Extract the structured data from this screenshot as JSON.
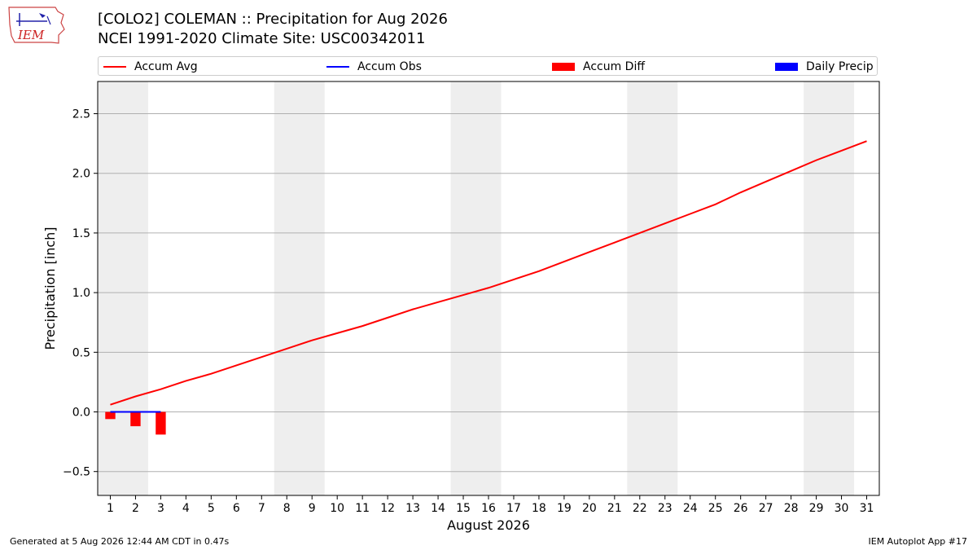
{
  "title": "[COLO2] COLEMAN :: Precipitation for Aug 2026",
  "subtitle": "NCEI 1991-2020 Climate Site: USC00342011",
  "logo_text": "IEM",
  "legend": [
    {
      "label": "Accum Avg",
      "color": "#ff0000",
      "kind": "line"
    },
    {
      "label": "Accum Obs",
      "color": "#0000ff",
      "kind": "line"
    },
    {
      "label": "Accum Diff",
      "color": "#ff0000",
      "kind": "box"
    },
    {
      "label": "Daily Precip",
      "color": "#0000ff",
      "kind": "box"
    }
  ],
  "footer": {
    "left": "Generated at 5 Aug 2026 12:44 AM CDT in 0.47s",
    "right": "IEM Autoplot App #17"
  },
  "chart_data": {
    "type": "line",
    "xlabel": "August 2026",
    "ylabel": "Precipitation [inch]",
    "xlim": [
      0.5,
      31.5
    ],
    "ylim": [
      -0.7,
      2.77
    ],
    "x": [
      1,
      2,
      3,
      4,
      5,
      6,
      7,
      8,
      9,
      10,
      11,
      12,
      13,
      14,
      15,
      16,
      17,
      18,
      19,
      20,
      21,
      22,
      23,
      24,
      25,
      26,
      27,
      28,
      29,
      30,
      31
    ],
    "x_tick_labels": [
      "1",
      "2",
      "3",
      "4",
      "5",
      "6",
      "7",
      "8",
      "9",
      "10",
      "11",
      "12",
      "13",
      "14",
      "15",
      "16",
      "17",
      "18",
      "19",
      "20",
      "21",
      "22",
      "23",
      "24",
      "25",
      "26",
      "27",
      "28",
      "29",
      "30",
      "31"
    ],
    "y_ticks": [
      -0.5,
      0.0,
      0.5,
      1.0,
      1.5,
      2.0,
      2.5
    ],
    "y_tick_labels": [
      "−0.5",
      "0.0",
      "0.5",
      "1.0",
      "1.5",
      "2.0",
      "2.5"
    ],
    "grid": "y",
    "legend_position": "top",
    "weekend_shading": [
      [
        0.5,
        2.5
      ],
      [
        7.5,
        9.5
      ],
      [
        14.5,
        16.5
      ],
      [
        21.5,
        23.5
      ],
      [
        28.5,
        30.5
      ]
    ],
    "series": [
      {
        "name": "Accum Avg",
        "kind": "line",
        "color": "#ff0000",
        "x": [
          1,
          2,
          3,
          4,
          5,
          6,
          7,
          8,
          9,
          10,
          11,
          12,
          13,
          14,
          15,
          16,
          17,
          18,
          19,
          20,
          21,
          22,
          23,
          24,
          25,
          26,
          27,
          28,
          29,
          30,
          31
        ],
        "values": [
          0.06,
          0.13,
          0.19,
          0.26,
          0.32,
          0.39,
          0.46,
          0.53,
          0.6,
          0.66,
          0.72,
          0.79,
          0.86,
          0.92,
          0.98,
          1.04,
          1.11,
          1.18,
          1.26,
          1.34,
          1.42,
          1.5,
          1.58,
          1.66,
          1.74,
          1.84,
          1.93,
          2.02,
          2.11,
          2.19,
          2.27
        ]
      },
      {
        "name": "Accum Obs",
        "kind": "line",
        "color": "#0000ff",
        "x": [
          1,
          2,
          3
        ],
        "values": [
          0.0,
          0.0,
          0.0
        ]
      },
      {
        "name": "Accum Diff",
        "kind": "bar",
        "color": "#ff0000",
        "x": [
          1,
          2,
          3
        ],
        "values": [
          -0.06,
          -0.12,
          -0.19
        ]
      },
      {
        "name": "Daily Precip",
        "kind": "bar",
        "color": "#0000ff",
        "x": [
          1,
          2,
          3
        ],
        "values": [
          0.0,
          0.0,
          0.0
        ]
      }
    ]
  }
}
